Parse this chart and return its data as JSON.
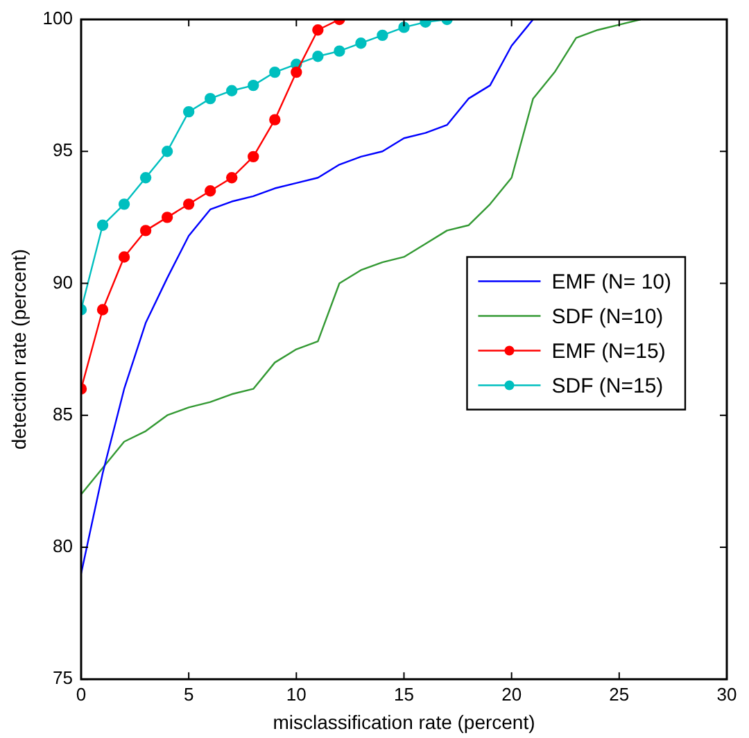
{
  "chart_data": {
    "type": "line",
    "xlabel": "misclassification rate (percent)",
    "ylabel": "detection rate (percent)",
    "xlim": [
      0,
      30
    ],
    "xticks": [
      0,
      5,
      10,
      15,
      20,
      25,
      30
    ],
    "ylim": [
      75,
      100
    ],
    "yticks": [
      75,
      80,
      85,
      90,
      95,
      100
    ],
    "grid": false,
    "legend": "right",
    "series": [
      {
        "name": "EMF (N= 10)",
        "color": "#0000ff",
        "marker": "none",
        "x": [
          0,
          1,
          2,
          3,
          4,
          5,
          6,
          7,
          8,
          9,
          10,
          11,
          12,
          13,
          14,
          15,
          16,
          17,
          18,
          19,
          20,
          21
        ],
        "values": [
          79,
          82.8,
          86,
          88.5,
          90.2,
          91.8,
          92.8,
          93.1,
          93.3,
          93.6,
          93.8,
          94,
          94.5,
          94.8,
          95,
          95.5,
          95.7,
          96,
          97,
          97.5,
          99,
          100
        ]
      },
      {
        "name": "SDF (N=10)",
        "color": "#339933",
        "marker": "none",
        "x": [
          0,
          1,
          2,
          3,
          4,
          5,
          6,
          7,
          8,
          9,
          10,
          11,
          12,
          13,
          14,
          15,
          16,
          17,
          18,
          19,
          20,
          21,
          22,
          23,
          24,
          25,
          26
        ],
        "values": [
          82,
          83,
          84,
          84.4,
          85,
          85.3,
          85.5,
          85.8,
          86,
          87,
          87.5,
          87.8,
          90,
          90.5,
          90.8,
          91,
          91.5,
          92,
          92.2,
          93,
          94,
          97,
          98,
          99.3,
          99.6,
          99.8,
          100
        ]
      },
      {
        "name": "EMF (N=15)",
        "color": "#ff0000",
        "marker": "circle",
        "x": [
          0,
          1,
          2,
          3,
          4,
          5,
          6,
          7,
          8,
          9,
          10,
          11,
          12
        ],
        "values": [
          86,
          89,
          91,
          92,
          92.5,
          93,
          93.5,
          94,
          94.8,
          96.2,
          98,
          99.6,
          100
        ]
      },
      {
        "name": "SDF (N=15)",
        "color": "#00bfbf",
        "marker": "circle",
        "x": [
          0,
          1,
          2,
          3,
          4,
          5,
          6,
          7,
          8,
          9,
          10,
          11,
          12,
          13,
          14,
          15,
          16,
          17
        ],
        "values": [
          89,
          92.2,
          93,
          94,
          95,
          96.5,
          97,
          97.3,
          97.5,
          98,
          98.3,
          98.6,
          98.8,
          99.1,
          99.4,
          99.7,
          99.9,
          100
        ]
      }
    ]
  }
}
